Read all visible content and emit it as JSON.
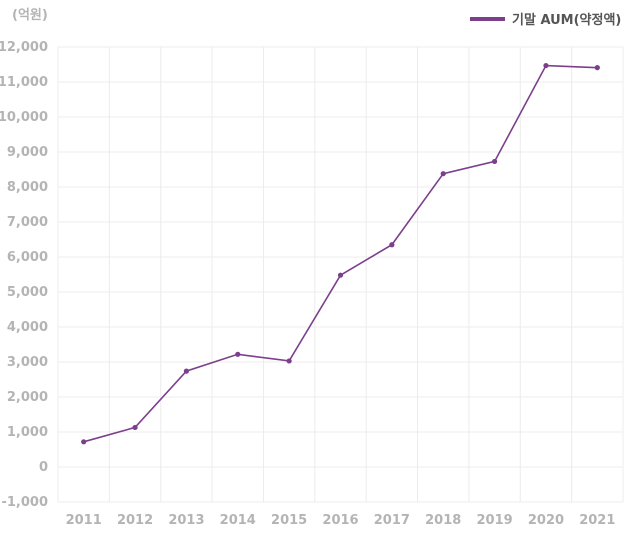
{
  "chart_data": {
    "type": "line",
    "title": "",
    "unit_label": "(억원)",
    "xlabel": "",
    "ylabel": "",
    "categories": [
      "2011",
      "2012",
      "2013",
      "2014",
      "2015",
      "2016",
      "2017",
      "2018",
      "2019",
      "2020",
      "2021"
    ],
    "series": [
      {
        "name": "기말 AUM(약정액)",
        "color": "#7b3f8c",
        "values": [
          720,
          1130,
          2740,
          3220,
          3030,
          5480,
          6350,
          8380,
          8730,
          11470,
          11410
        ]
      }
    ],
    "ylim": [
      -1000,
      12000
    ],
    "yticks": [
      -1000,
      0,
      1000,
      2000,
      3000,
      4000,
      5000,
      6000,
      7000,
      8000,
      9000,
      10000,
      11000,
      12000
    ],
    "ytick_labels": [
      "-1,000",
      "0",
      "1,000",
      "2,000",
      "3,000",
      "4,000",
      "5,000",
      "6,000",
      "7,000",
      "8,000",
      "9,000",
      "10,000",
      "11,000",
      "12,000"
    ],
    "grid": true,
    "legend_position": "top-right"
  }
}
